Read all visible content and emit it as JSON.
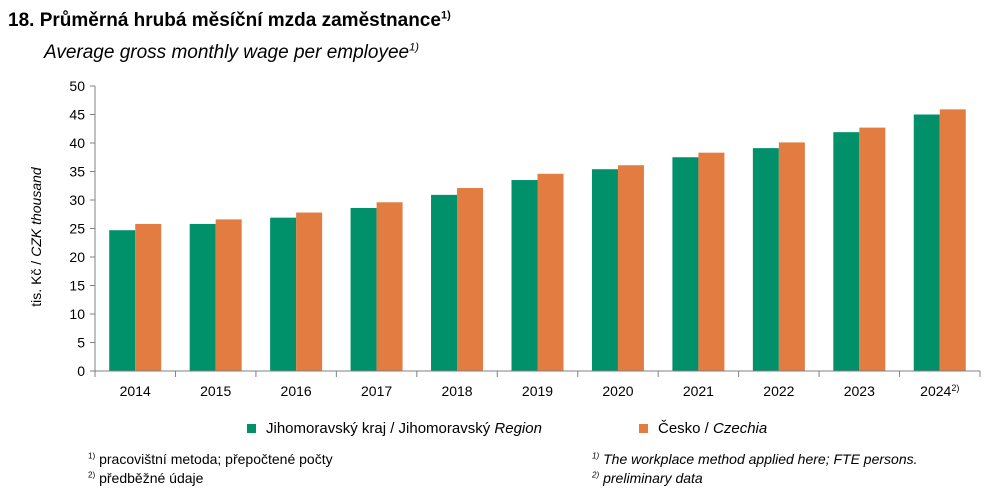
{
  "header": {
    "title": "18. Průměrná hrubá měsíční mzda zaměstnance",
    "title_note": "1)",
    "subtitle": "Average gross monthly wage per employee",
    "subtitle_note": "1)"
  },
  "chart_data": {
    "type": "bar",
    "categories": [
      "2014",
      "2015",
      "2016",
      "2017",
      "2018",
      "2019",
      "2020",
      "2021",
      "2022",
      "2023",
      "2024"
    ],
    "category_notes": [
      "",
      "",
      "",
      "",
      "",
      "",
      "",
      "",
      "",
      "",
      "2)"
    ],
    "series": [
      {
        "name": "Jihomoravský kraj / Jihomoravský Region",
        "color": "#00906a",
        "values": [
          24.7,
          25.8,
          26.9,
          28.6,
          30.9,
          33.5,
          35.4,
          37.5,
          39.1,
          41.9,
          45.0
        ]
      },
      {
        "name": "Česko / Czechia",
        "color": "#e27c40",
        "values": [
          25.8,
          26.6,
          27.8,
          29.6,
          32.1,
          34.6,
          36.1,
          38.3,
          40.1,
          42.7,
          45.9
        ]
      }
    ],
    "ylabel_cz": "tis. Kč /",
    "ylabel_en": "CZK thousand",
    "ylim": [
      0,
      50
    ],
    "yticks": [
      "0",
      "5",
      "10",
      "15",
      "20",
      "25",
      "30",
      "35",
      "40",
      "45",
      "50"
    ],
    "grid": false,
    "legend_position": "bottom"
  },
  "legend": {
    "series1_cz": "Jihomoravský kraj / Jihomoravský",
    "series1_en": "Region",
    "series2_cz": "Česko /",
    "series2_en": "Czechia"
  },
  "footnotes": {
    "note1_mark": "1)",
    "note1_cz": "pracovištní metoda; přepočtené počty",
    "note2_mark": "2)",
    "note2_cz": "předběžné údaje",
    "note1_en_mark": "1)",
    "note1_en": "The workplace method applied here; FTE persons.",
    "note2_en_mark": "2)",
    "note2_en": "preliminary data"
  },
  "colors": {
    "series1": "#00906a",
    "series2": "#e27c40",
    "axis": "#808080"
  }
}
